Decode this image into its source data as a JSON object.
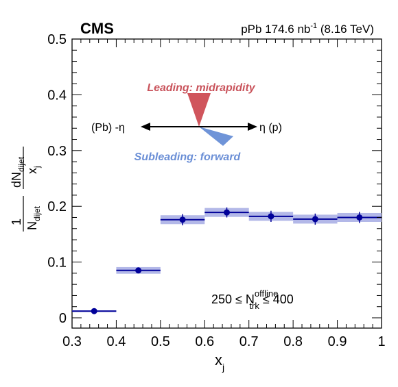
{
  "chart_data": {
    "type": "scatter",
    "experiment_label": "CMS",
    "lumi_label": {
      "prefix": "pPb 174.6 nb",
      "sup": "-1",
      "suffix": " (8.16 TeV)"
    },
    "xlabel": "x",
    "xlabel_sub": "j",
    "ylabel": {
      "frac1_num": "1",
      "frac1_den": "N",
      "frac1_den_sub": "dijet",
      "frac2_num": "dN",
      "frac2_num_sub": "dijet",
      "frac2_den": "x",
      "frac2_den_sub": "j"
    },
    "xlim": [
      0.3,
      1.0
    ],
    "ylim": [
      -0.02,
      0.5
    ],
    "xticks": [
      "0.3",
      "0.4",
      "0.5",
      "0.6",
      "0.7",
      "0.8",
      "0.9",
      "1"
    ],
    "yticks": [
      "0",
      "0.1",
      "0.2",
      "0.3",
      "0.4",
      "0.5"
    ],
    "bins": [
      {
        "x": 0.35,
        "lo": 0.3,
        "hi": 0.4,
        "y": 0.012,
        "stat": 0.002,
        "syst": 0.0015
      },
      {
        "x": 0.45,
        "lo": 0.4,
        "hi": 0.5,
        "y": 0.085,
        "stat": 0.005,
        "syst": 0.006
      },
      {
        "x": 0.55,
        "lo": 0.5,
        "hi": 0.6,
        "y": 0.176,
        "stat": 0.01,
        "syst": 0.008
      },
      {
        "x": 0.65,
        "lo": 0.6,
        "hi": 0.7,
        "y": 0.189,
        "stat": 0.009,
        "syst": 0.008
      },
      {
        "x": 0.75,
        "lo": 0.7,
        "hi": 0.8,
        "y": 0.182,
        "stat": 0.01,
        "syst": 0.008
      },
      {
        "x": 0.85,
        "lo": 0.8,
        "hi": 0.9,
        "y": 0.177,
        "stat": 0.01,
        "syst": 0.008
      },
      {
        "x": 0.95,
        "lo": 0.9,
        "hi": 1.0,
        "y": 0.18,
        "stat": 0.01,
        "syst": 0.008
      }
    ],
    "annotations": {
      "leading": "Leading: midrapidity",
      "subleading": "Subleading: forward",
      "left_arrow_label": "(Pb) -η",
      "right_arrow_label": "η (p)",
      "condition": {
        "left": "250 ≤ N",
        "sup": "offline",
        "sub": "trk",
        "right": " ≤ 400"
      }
    },
    "colors": {
      "marker": "#000099",
      "syst_band": "#b3b8e8",
      "leading_cone": "#d0555c",
      "subleading_cone": "#6f94d8"
    },
    "grid": false
  }
}
